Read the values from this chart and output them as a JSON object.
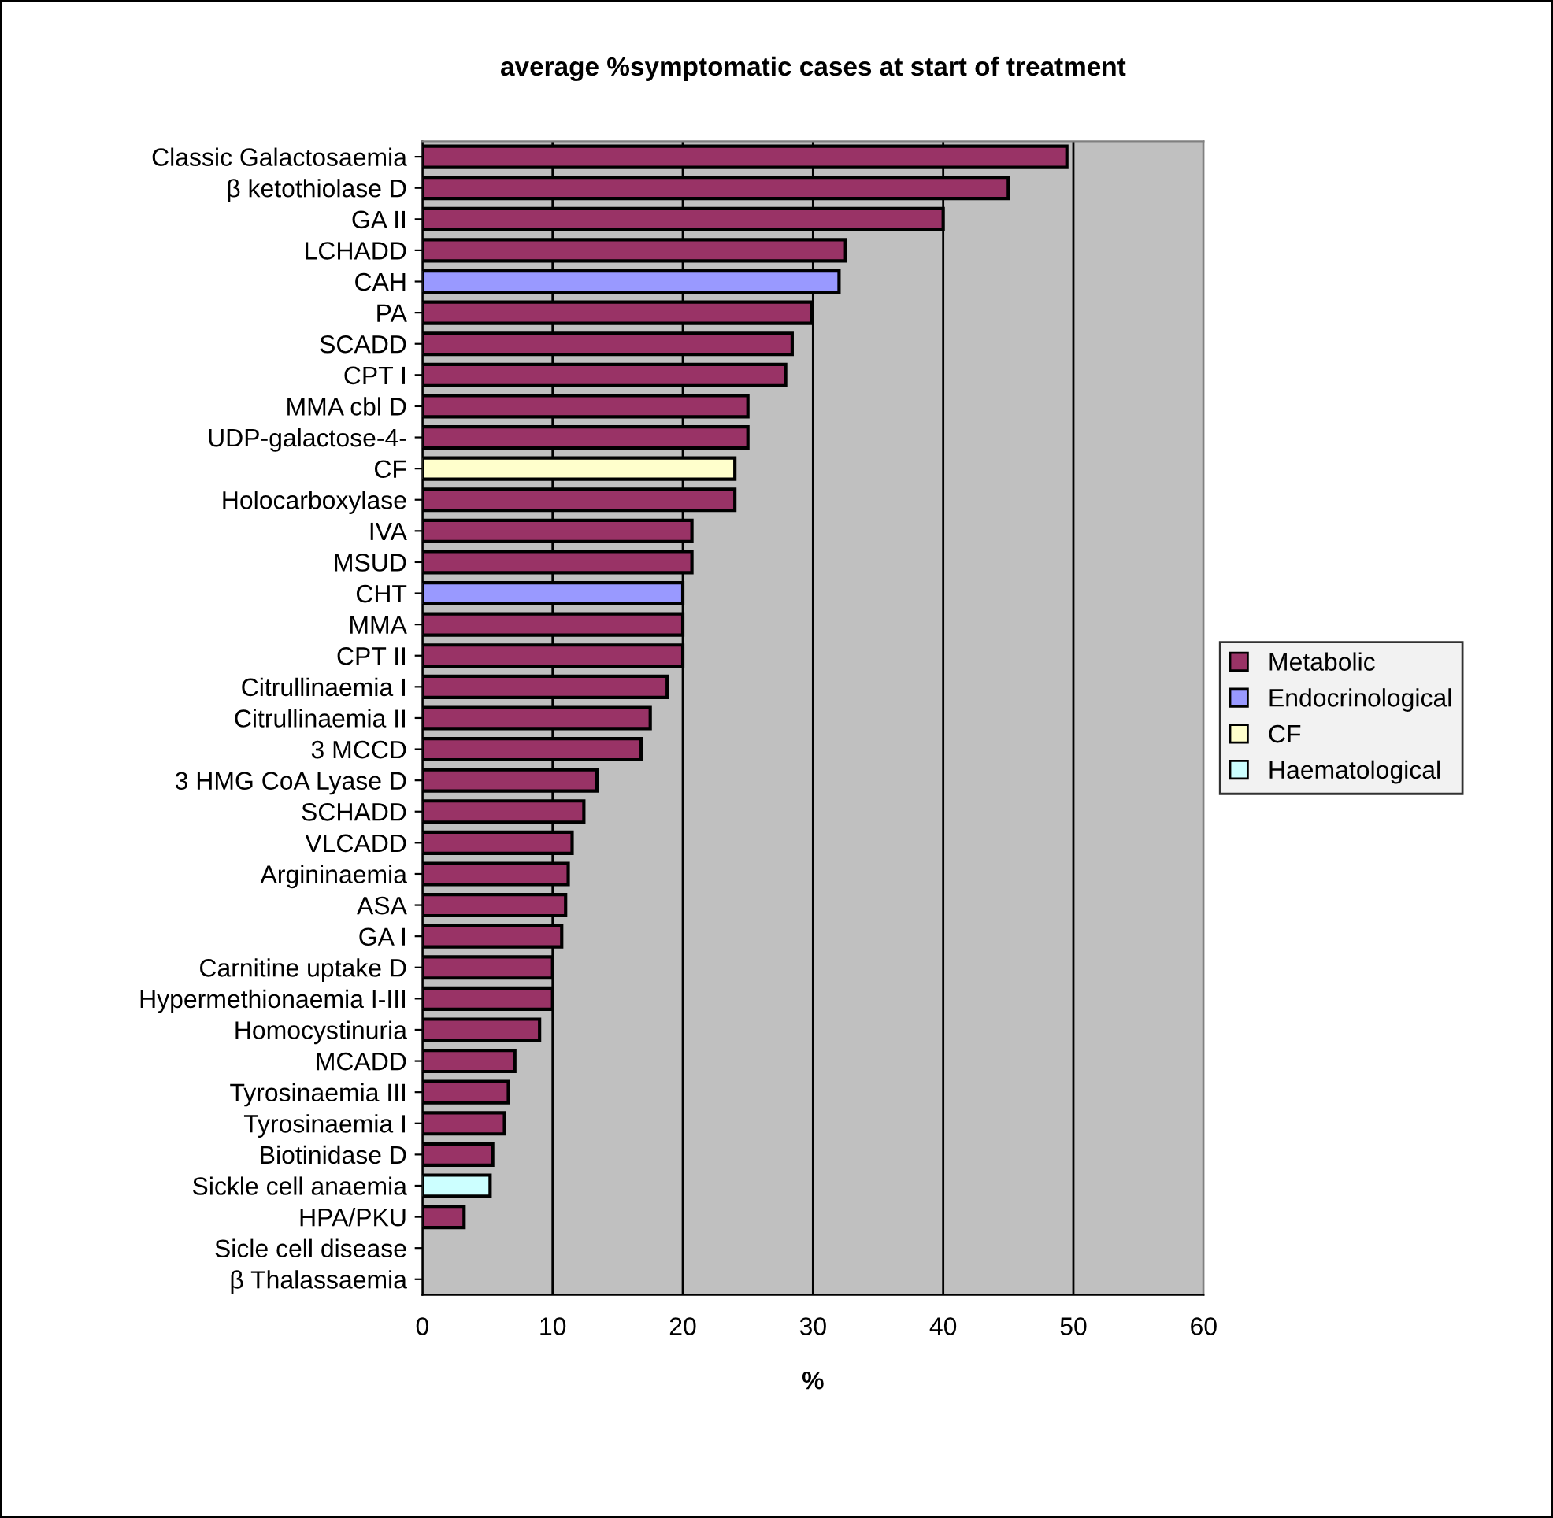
{
  "chart_data": {
    "type": "bar",
    "orientation": "horizontal",
    "title": "average %symptomatic cases at start of treatment",
    "xlabel": "%",
    "categories": [
      "Classic Galactosaemia",
      "β ketothiolase D",
      "GA II",
      "LCHADD",
      "CAH",
      "PA",
      "SCADD",
      "CPT I",
      "MMA cbl D",
      "UDP-galactose-4-",
      "CF",
      "Holocarboxylase",
      "IVA",
      "MSUD",
      "CHT",
      "MMA",
      "CPT II",
      "Citrullinaemia I",
      "Citrullinaemia II",
      "3 MCCD",
      "3 HMG CoA Lyase D",
      "SCHADD",
      "VLCADD",
      "Argininaemia",
      "ASA",
      "GA I",
      "Carnitine uptake D",
      "Hypermethionaemia I-III",
      "Homocystinuria",
      "MCADD",
      "Tyrosinaemia III",
      "Tyrosinaemia I",
      "Biotinidase D",
      "Sickle cell anaemia",
      "HPA/PKU",
      "Sicle cell disease",
      "β Thalassaemia"
    ],
    "series": [
      {
        "name": "Metabolic",
        "color": "#993366",
        "values": [
          49.5,
          45,
          40,
          32.5,
          null,
          29.9,
          28.4,
          27.9,
          25,
          25,
          null,
          24,
          20.7,
          20.7,
          null,
          20,
          20,
          18.8,
          17.5,
          16.8,
          13.4,
          12.4,
          11.5,
          11.2,
          11,
          10.7,
          10,
          10,
          9,
          7.1,
          6.6,
          6.3,
          5.4,
          null,
          3.2,
          null,
          null
        ]
      },
      {
        "name": "Endocrinological",
        "color": "#9999ff",
        "values": [
          null,
          null,
          null,
          null,
          32,
          null,
          null,
          null,
          null,
          null,
          null,
          null,
          null,
          null,
          20,
          null,
          null,
          null,
          null,
          null,
          null,
          null,
          null,
          null,
          null,
          null,
          null,
          null,
          null,
          null,
          null,
          null,
          null,
          null,
          null,
          null,
          null
        ]
      },
      {
        "name": "CF",
        "color": "#ffffcc",
        "values": [
          null,
          null,
          null,
          null,
          null,
          null,
          null,
          null,
          null,
          null,
          24,
          null,
          null,
          null,
          null,
          null,
          null,
          null,
          null,
          null,
          null,
          null,
          null,
          null,
          null,
          null,
          null,
          null,
          null,
          null,
          null,
          null,
          null,
          null,
          null,
          null,
          null
        ]
      },
      {
        "name": "Haematological",
        "color": "#ccffff",
        "values": [
          null,
          null,
          null,
          null,
          null,
          null,
          null,
          null,
          null,
          null,
          null,
          null,
          null,
          null,
          null,
          null,
          null,
          null,
          null,
          null,
          null,
          null,
          null,
          null,
          null,
          null,
          null,
          null,
          null,
          null,
          null,
          null,
          null,
          5.2,
          null,
          null,
          null
        ]
      }
    ],
    "xlim": [
      0,
      60
    ],
    "xticks": [
      0,
      10,
      20,
      30,
      40,
      50,
      60
    ],
    "grid": "x",
    "legend": "right"
  }
}
